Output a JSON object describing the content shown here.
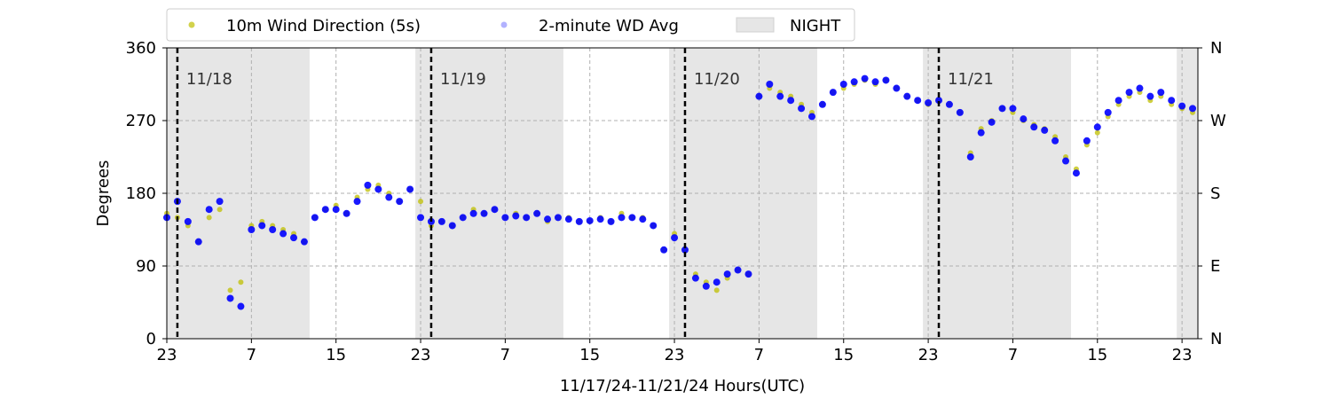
{
  "chart_data": {
    "type": "scatter",
    "xlabel": "11/17/24-11/21/24  Hours(UTC)",
    "ylabel": "Degrees",
    "xlim": [
      0,
      97.5
    ],
    "ylim": [
      0,
      360
    ],
    "x_ticks": [
      {
        "x": 0,
        "label": "23"
      },
      {
        "x": 8,
        "label": "7"
      },
      {
        "x": 16,
        "label": "15"
      },
      {
        "x": 24,
        "label": "23"
      },
      {
        "x": 32,
        "label": "7"
      },
      {
        "x": 40,
        "label": "15"
      },
      {
        "x": 48,
        "label": "23"
      },
      {
        "x": 56,
        "label": "7"
      },
      {
        "x": 64,
        "label": "15"
      },
      {
        "x": 72,
        "label": "23"
      },
      {
        "x": 80,
        "label": "7"
      },
      {
        "x": 88,
        "label": "15"
      },
      {
        "x": 96,
        "label": "23"
      }
    ],
    "y_ticks": [
      0,
      90,
      180,
      270,
      360
    ],
    "right_y_ticks": [
      {
        "y": 0,
        "label": "N"
      },
      {
        "y": 90,
        "label": "E"
      },
      {
        "y": 180,
        "label": "S"
      },
      {
        "y": 270,
        "label": "W"
      },
      {
        "y": 360,
        "label": "N"
      }
    ],
    "grid": true,
    "legend_placement": "top, outside plot",
    "legend": [
      {
        "label": "10m Wind Direction (5s)",
        "kind": "marker",
        "color": "#bfbf00"
      },
      {
        "label": "2-minute WD Avg",
        "kind": "marker",
        "color": "#0000ff"
      },
      {
        "label": "NIGHT",
        "kind": "patch",
        "color": "#e6e6e6"
      }
    ],
    "night_periods": [
      [
        0,
        13.5
      ],
      [
        23.5,
        37.5
      ],
      [
        47.5,
        61.5
      ],
      [
        71.5,
        85.5
      ],
      [
        95.5,
        97.5
      ]
    ],
    "day_markers": [
      {
        "x": 1,
        "label": "11/18"
      },
      {
        "x": 25,
        "label": "11/19"
      },
      {
        "x": 49,
        "label": "11/20"
      },
      {
        "x": 73,
        "label": "11/21"
      }
    ],
    "series": [
      {
        "name": "10m Wind Direction (5s)",
        "color": "#bfbf00",
        "points": [
          [
            0,
            155
          ],
          [
            1,
            150
          ],
          [
            2,
            140
          ],
          [
            3,
            120
          ],
          [
            4,
            150
          ],
          [
            5,
            160
          ],
          [
            6,
            60
          ],
          [
            7,
            70
          ],
          [
            8,
            140
          ],
          [
            9,
            145
          ],
          [
            10,
            140
          ],
          [
            11,
            135
          ],
          [
            12,
            130
          ],
          [
            13,
            120
          ],
          [
            14,
            150
          ],
          [
            15,
            160
          ],
          [
            16,
            165
          ],
          [
            17,
            155
          ],
          [
            18,
            175
          ],
          [
            19,
            185
          ],
          [
            20,
            190
          ],
          [
            21,
            180
          ],
          [
            22,
            170
          ],
          [
            23,
            185
          ],
          [
            24,
            170
          ],
          [
            25,
            140
          ],
          [
            26,
            145
          ],
          [
            27,
            140
          ],
          [
            28,
            150
          ],
          [
            29,
            160
          ],
          [
            30,
            155
          ],
          [
            31,
            160
          ],
          [
            32,
            150
          ],
          [
            33,
            155
          ],
          [
            34,
            150
          ],
          [
            35,
            155
          ],
          [
            36,
            145
          ],
          [
            37,
            150
          ],
          [
            38,
            150
          ],
          [
            39,
            145
          ],
          [
            40,
            145
          ],
          [
            41,
            150
          ],
          [
            42,
            145
          ],
          [
            43,
            155
          ],
          [
            44,
            150
          ],
          [
            45,
            150
          ],
          [
            46,
            140
          ],
          [
            47,
            110
          ],
          [
            48,
            130
          ],
          [
            49,
            110
          ],
          [
            50,
            80
          ],
          [
            51,
            70
          ],
          [
            52,
            60
          ],
          [
            53,
            75
          ],
          [
            54,
            85
          ],
          [
            55,
            80
          ],
          [
            56,
            300
          ],
          [
            57,
            310
          ],
          [
            58,
            305
          ],
          [
            59,
            300
          ],
          [
            60,
            290
          ],
          [
            61,
            280
          ],
          [
            62,
            290
          ],
          [
            63,
            305
          ],
          [
            64,
            310
          ],
          [
            65,
            315
          ],
          [
            66,
            320
          ],
          [
            67,
            315
          ],
          [
            68,
            320
          ],
          [
            69,
            310
          ],
          [
            70,
            300
          ],
          [
            71,
            295
          ],
          [
            72,
            290
          ],
          [
            73,
            295
          ],
          [
            74,
            290
          ],
          [
            75,
            280
          ],
          [
            76,
            230
          ],
          [
            77,
            260
          ],
          [
            78,
            270
          ],
          [
            79,
            285
          ],
          [
            80,
            280
          ],
          [
            81,
            270
          ],
          [
            82,
            265
          ],
          [
            83,
            260
          ],
          [
            84,
            250
          ],
          [
            85,
            225
          ],
          [
            86,
            210
          ],
          [
            87,
            240
          ],
          [
            88,
            255
          ],
          [
            89,
            275
          ],
          [
            90,
            290
          ],
          [
            91,
            300
          ],
          [
            92,
            305
          ],
          [
            93,
            295
          ],
          [
            94,
            300
          ],
          [
            95,
            290
          ],
          [
            96,
            285
          ],
          [
            97,
            280
          ]
        ]
      },
      {
        "name": "2-minute WD Avg",
        "color": "#0000ff",
        "points": [
          [
            0,
            150
          ],
          [
            1,
            170
          ],
          [
            2,
            145
          ],
          [
            3,
            120
          ],
          [
            4,
            160
          ],
          [
            5,
            170
          ],
          [
            6,
            50
          ],
          [
            7,
            40
          ],
          [
            8,
            135
          ],
          [
            9,
            140
          ],
          [
            10,
            135
          ],
          [
            11,
            130
          ],
          [
            12,
            125
          ],
          [
            13,
            120
          ],
          [
            14,
            150
          ],
          [
            15,
            160
          ],
          [
            16,
            160
          ],
          [
            17,
            155
          ],
          [
            18,
            170
          ],
          [
            19,
            190
          ],
          [
            20,
            185
          ],
          [
            21,
            175
          ],
          [
            22,
            170
          ],
          [
            23,
            185
          ],
          [
            24,
            150
          ],
          [
            25,
            145
          ],
          [
            26,
            145
          ],
          [
            27,
            140
          ],
          [
            28,
            150
          ],
          [
            29,
            155
          ],
          [
            30,
            155
          ],
          [
            31,
            160
          ],
          [
            32,
            150
          ],
          [
            33,
            152
          ],
          [
            34,
            150
          ],
          [
            35,
            155
          ],
          [
            36,
            148
          ],
          [
            37,
            150
          ],
          [
            38,
            148
          ],
          [
            39,
            145
          ],
          [
            40,
            146
          ],
          [
            41,
            148
          ],
          [
            42,
            145
          ],
          [
            43,
            150
          ],
          [
            44,
            150
          ],
          [
            45,
            148
          ],
          [
            46,
            140
          ],
          [
            47,
            110
          ],
          [
            48,
            125
          ],
          [
            49,
            110
          ],
          [
            50,
            75
          ],
          [
            51,
            65
          ],
          [
            52,
            70
          ],
          [
            53,
            80
          ],
          [
            54,
            85
          ],
          [
            55,
            80
          ],
          [
            56,
            300
          ],
          [
            57,
            315
          ],
          [
            58,
            300
          ],
          [
            59,
            295
          ],
          [
            60,
            285
          ],
          [
            61,
            275
          ],
          [
            62,
            290
          ],
          [
            63,
            305
          ],
          [
            64,
            315
          ],
          [
            65,
            318
          ],
          [
            66,
            322
          ],
          [
            67,
            318
          ],
          [
            68,
            320
          ],
          [
            69,
            310
          ],
          [
            70,
            300
          ],
          [
            71,
            295
          ],
          [
            72,
            292
          ],
          [
            73,
            295
          ],
          [
            74,
            290
          ],
          [
            75,
            280
          ],
          [
            76,
            225
          ],
          [
            77,
            255
          ],
          [
            78,
            268
          ],
          [
            79,
            285
          ],
          [
            80,
            285
          ],
          [
            81,
            272
          ],
          [
            82,
            262
          ],
          [
            83,
            258
          ],
          [
            84,
            245
          ],
          [
            85,
            220
          ],
          [
            86,
            205
          ],
          [
            87,
            245
          ],
          [
            88,
            262
          ],
          [
            89,
            280
          ],
          [
            90,
            295
          ],
          [
            91,
            305
          ],
          [
            92,
            310
          ],
          [
            93,
            300
          ],
          [
            94,
            305
          ],
          [
            95,
            295
          ],
          [
            96,
            288
          ],
          [
            97,
            285
          ]
        ]
      }
    ]
  }
}
